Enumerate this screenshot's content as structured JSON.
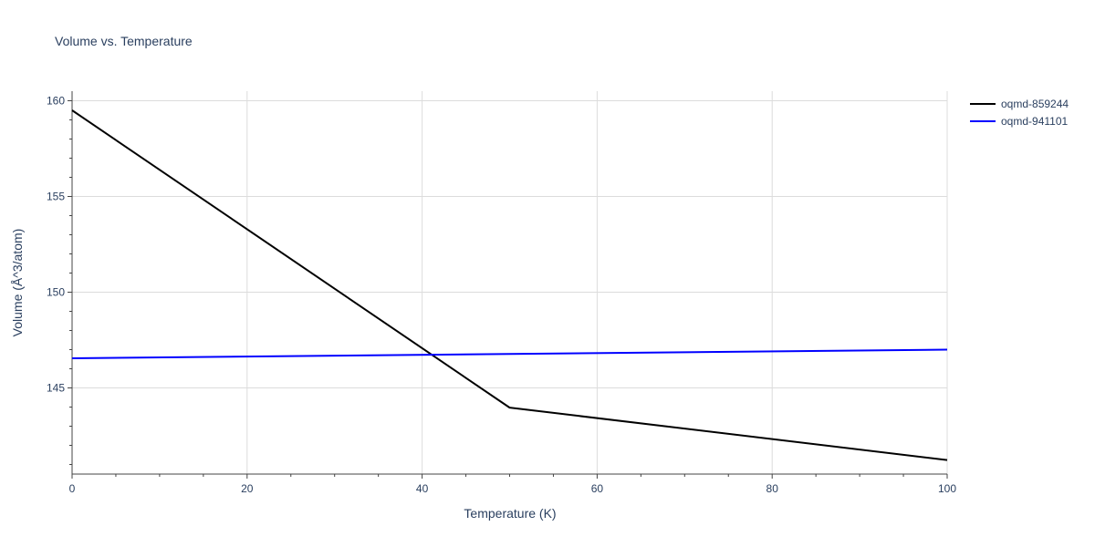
{
  "chart_data": {
    "type": "line",
    "title": "Volume vs. Temperature",
    "xlabel": "Temperature (K)",
    "ylabel": "Volume (Å^3/atom)",
    "xlim": [
      0,
      100
    ],
    "ylim": [
      140.5,
      160.5
    ],
    "x_ticks": [
      0,
      20,
      40,
      60,
      80,
      100
    ],
    "y_ticks": [
      145,
      150,
      155,
      160
    ],
    "grid": true,
    "legend_position": "top-right",
    "series": [
      {
        "name": "oqmd-859244",
        "color": "#000000",
        "x": [
          0,
          50,
          100
        ],
        "y": [
          159.5,
          143.97,
          141.23
        ]
      },
      {
        "name": "oqmd-941101",
        "color": "#0000ff",
        "x": [
          0,
          100
        ],
        "y": [
          146.55,
          147.0
        ]
      }
    ]
  }
}
